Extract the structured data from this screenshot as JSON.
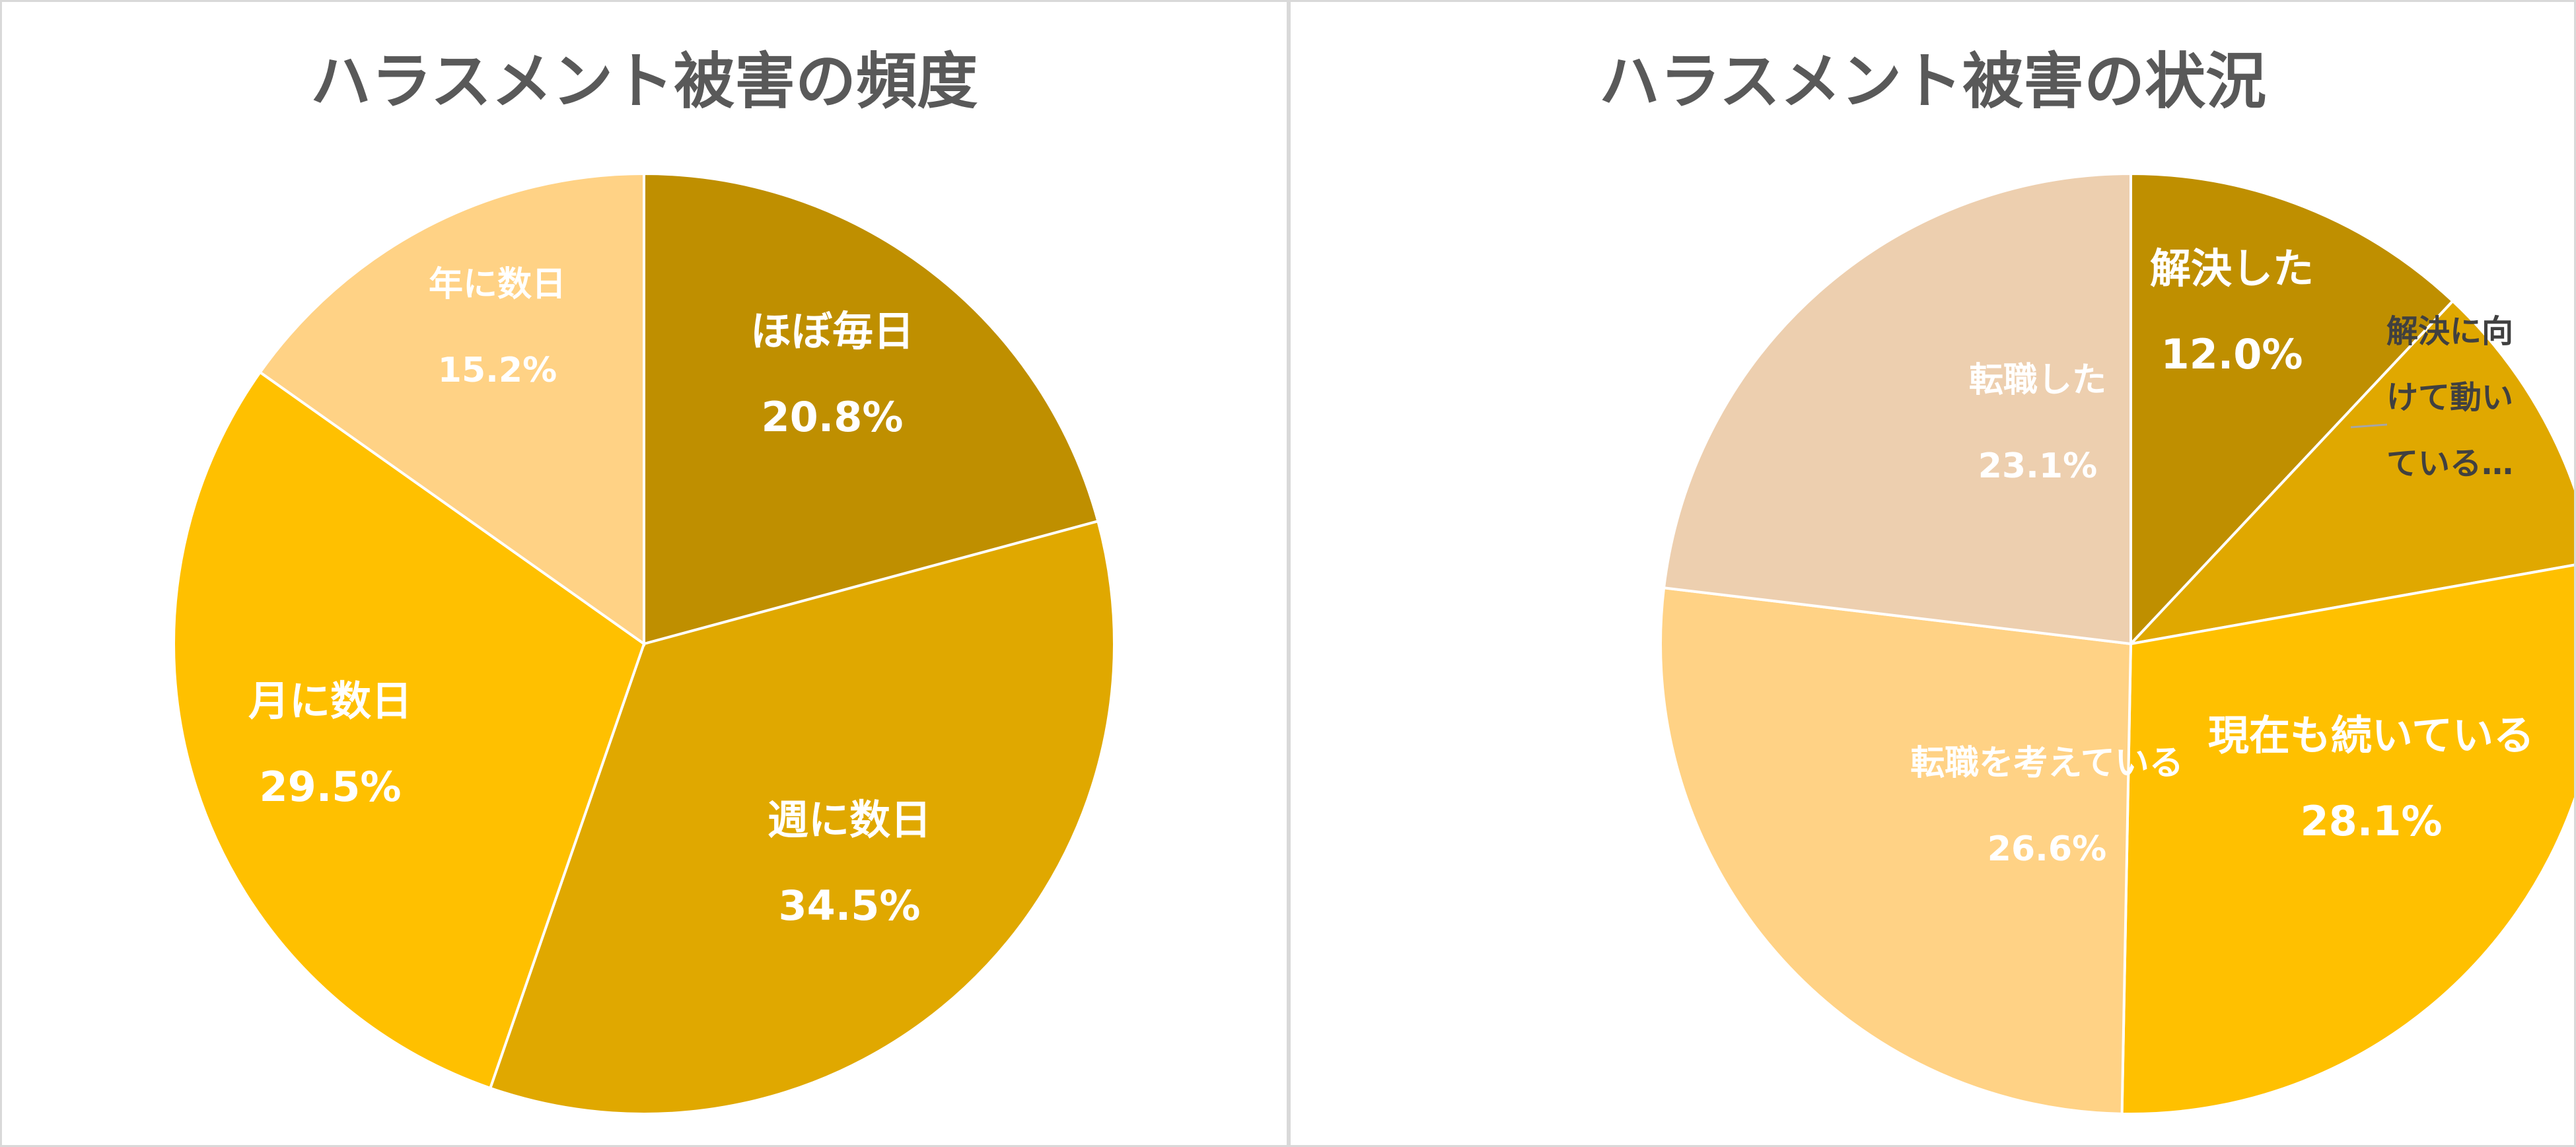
{
  "chart_data": [
    {
      "type": "pie",
      "title": "ハラスメント被害の頻度",
      "slices": [
        {
          "label": "ほぼ毎日",
          "value": 20.8,
          "display": "20.8%",
          "color": "#BF8F00"
        },
        {
          "label": "週に数日",
          "value": 34.5,
          "display": "34.5%",
          "color": "#E0A800"
        },
        {
          "label": "月に数日",
          "value": 29.5,
          "display": "29.5%",
          "color": "#FFC000"
        },
        {
          "label": "年に数日",
          "value": 15.2,
          "display": "15.2%",
          "color": "#FFD285"
        }
      ]
    },
    {
      "type": "pie",
      "title": "ハラスメント被害の状況",
      "slices": [
        {
          "label": "解決した",
          "value": 12.0,
          "display": "12.0%",
          "color": "#BF8F00"
        },
        {
          "label": "解決に向けて動いている…",
          "label_lines": [
            "解決に向",
            "けて動い",
            "ている…"
          ],
          "value": 10.2,
          "display": "",
          "color": "#E0A800"
        },
        {
          "label": "現在も続いている",
          "value": 28.1,
          "display": "28.1%",
          "color": "#FFC000"
        },
        {
          "label": "転職を考えている",
          "value": 26.6,
          "display": "26.6%",
          "color": "#FFD285"
        },
        {
          "label": "転職した",
          "value": 23.1,
          "display": "23.1%",
          "color": "#EDCFAF"
        }
      ]
    }
  ]
}
